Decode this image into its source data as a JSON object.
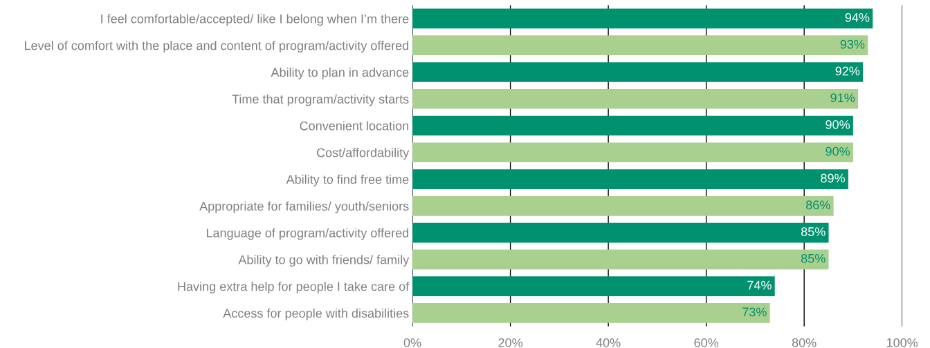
{
  "chart_data": {
    "type": "bar",
    "orientation": "horizontal",
    "categories": [
      "I feel comfortable/accepted/ like I belong when I’m there",
      "Level of comfort with the place and content of program/activity offered",
      "Ability to plan in advance",
      "Time that program/activity starts",
      "Convenient location",
      "Cost/affordability",
      "Ability to find free time",
      "Appropriate for families/ youth/seniors",
      "Language of program/activity offered",
      "Ability to go with friends/ family",
      "Having extra help for people I take care of",
      "Access for people with disabilities"
    ],
    "values": [
      94,
      93,
      92,
      91,
      90,
      90,
      89,
      86,
      85,
      85,
      74,
      73
    ],
    "value_labels": [
      "94%",
      "93%",
      "92%",
      "91%",
      "90%",
      "90%",
      "89%",
      "86%",
      "85%",
      "85%",
      "74%",
      "73%"
    ],
    "colors": [
      "#00916e",
      "#a9d08e",
      "#00916e",
      "#a9d08e",
      "#00916e",
      "#a9d08e",
      "#00916e",
      "#a9d08e",
      "#00916e",
      "#a9d08e",
      "#00916e",
      "#a9d08e"
    ],
    "xlim": [
      0,
      100
    ],
    "xticks": [
      {
        "value": 0,
        "label": "0%"
      },
      {
        "value": 20,
        "label": "20%"
      },
      {
        "value": 40,
        "label": "40%"
      },
      {
        "value": 60,
        "label": "60%"
      },
      {
        "value": 80,
        "label": "80%"
      },
      {
        "value": 100,
        "label": "100%"
      }
    ],
    "grid": "x",
    "legend": false
  }
}
